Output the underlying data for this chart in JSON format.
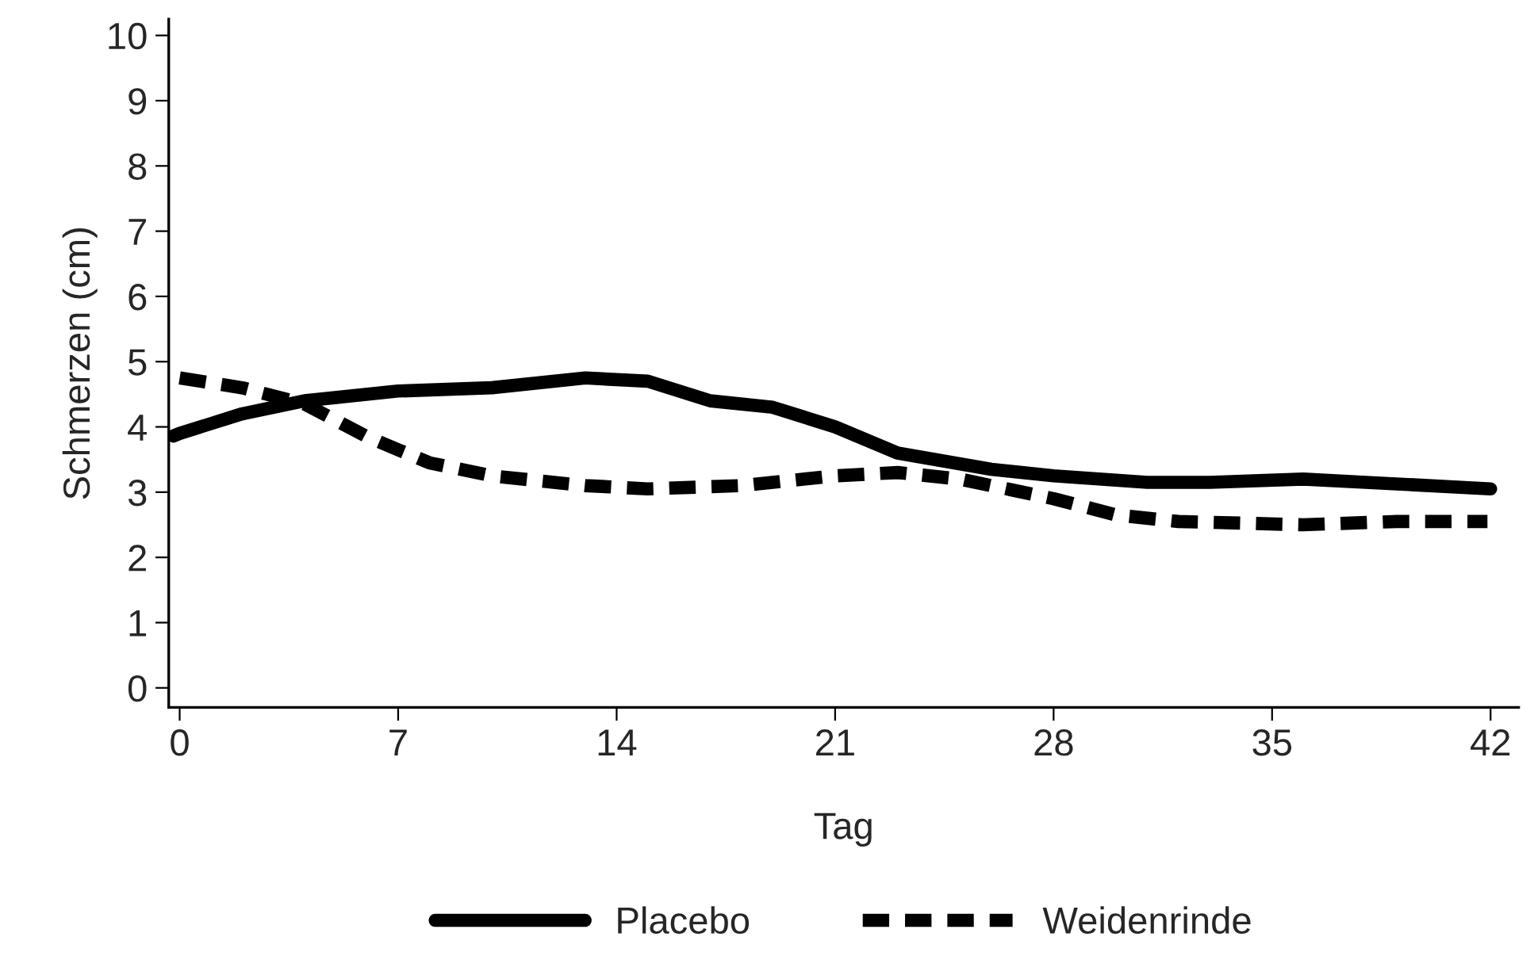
{
  "chart_data": {
    "type": "line",
    "xlabel": "Tag",
    "ylabel": "Schmerzen (cm)",
    "xlim": [
      -0.35,
      42.9
    ],
    "ylim": [
      -0.3,
      10.25
    ],
    "xticks": [
      0,
      7,
      14,
      21,
      28,
      35,
      42
    ],
    "yticks": [
      0,
      1,
      2,
      3,
      4,
      5,
      6,
      7,
      8,
      9,
      10
    ],
    "grid": false,
    "legend": "bottom",
    "marker": "none",
    "series": [
      {
        "name": "Placebo",
        "color": "#000000",
        "line_style": "solid",
        "x": [
          -0.2,
          0,
          2,
          4,
          7,
          10,
          13,
          15,
          17,
          19,
          21,
          23,
          26,
          28,
          31,
          33,
          36,
          38,
          42
        ],
        "values": [
          3.86,
          3.9,
          4.2,
          4.4,
          4.55,
          4.6,
          4.75,
          4.7,
          4.4,
          4.3,
          4.0,
          3.6,
          3.35,
          3.25,
          3.15,
          3.15,
          3.2,
          3.15,
          3.05
        ]
      },
      {
        "name": "Weidenrinde",
        "color": "#000000",
        "line_style": "dashed",
        "x": [
          0,
          2,
          4,
          6,
          8,
          10,
          13,
          15,
          18,
          21,
          23,
          25,
          28,
          30,
          32,
          36,
          39,
          41.9
        ],
        "values": [
          4.75,
          4.6,
          4.35,
          3.85,
          3.45,
          3.25,
          3.1,
          3.05,
          3.1,
          3.25,
          3.3,
          3.2,
          2.9,
          2.65,
          2.55,
          2.5,
          2.55,
          2.55
        ]
      }
    ]
  }
}
